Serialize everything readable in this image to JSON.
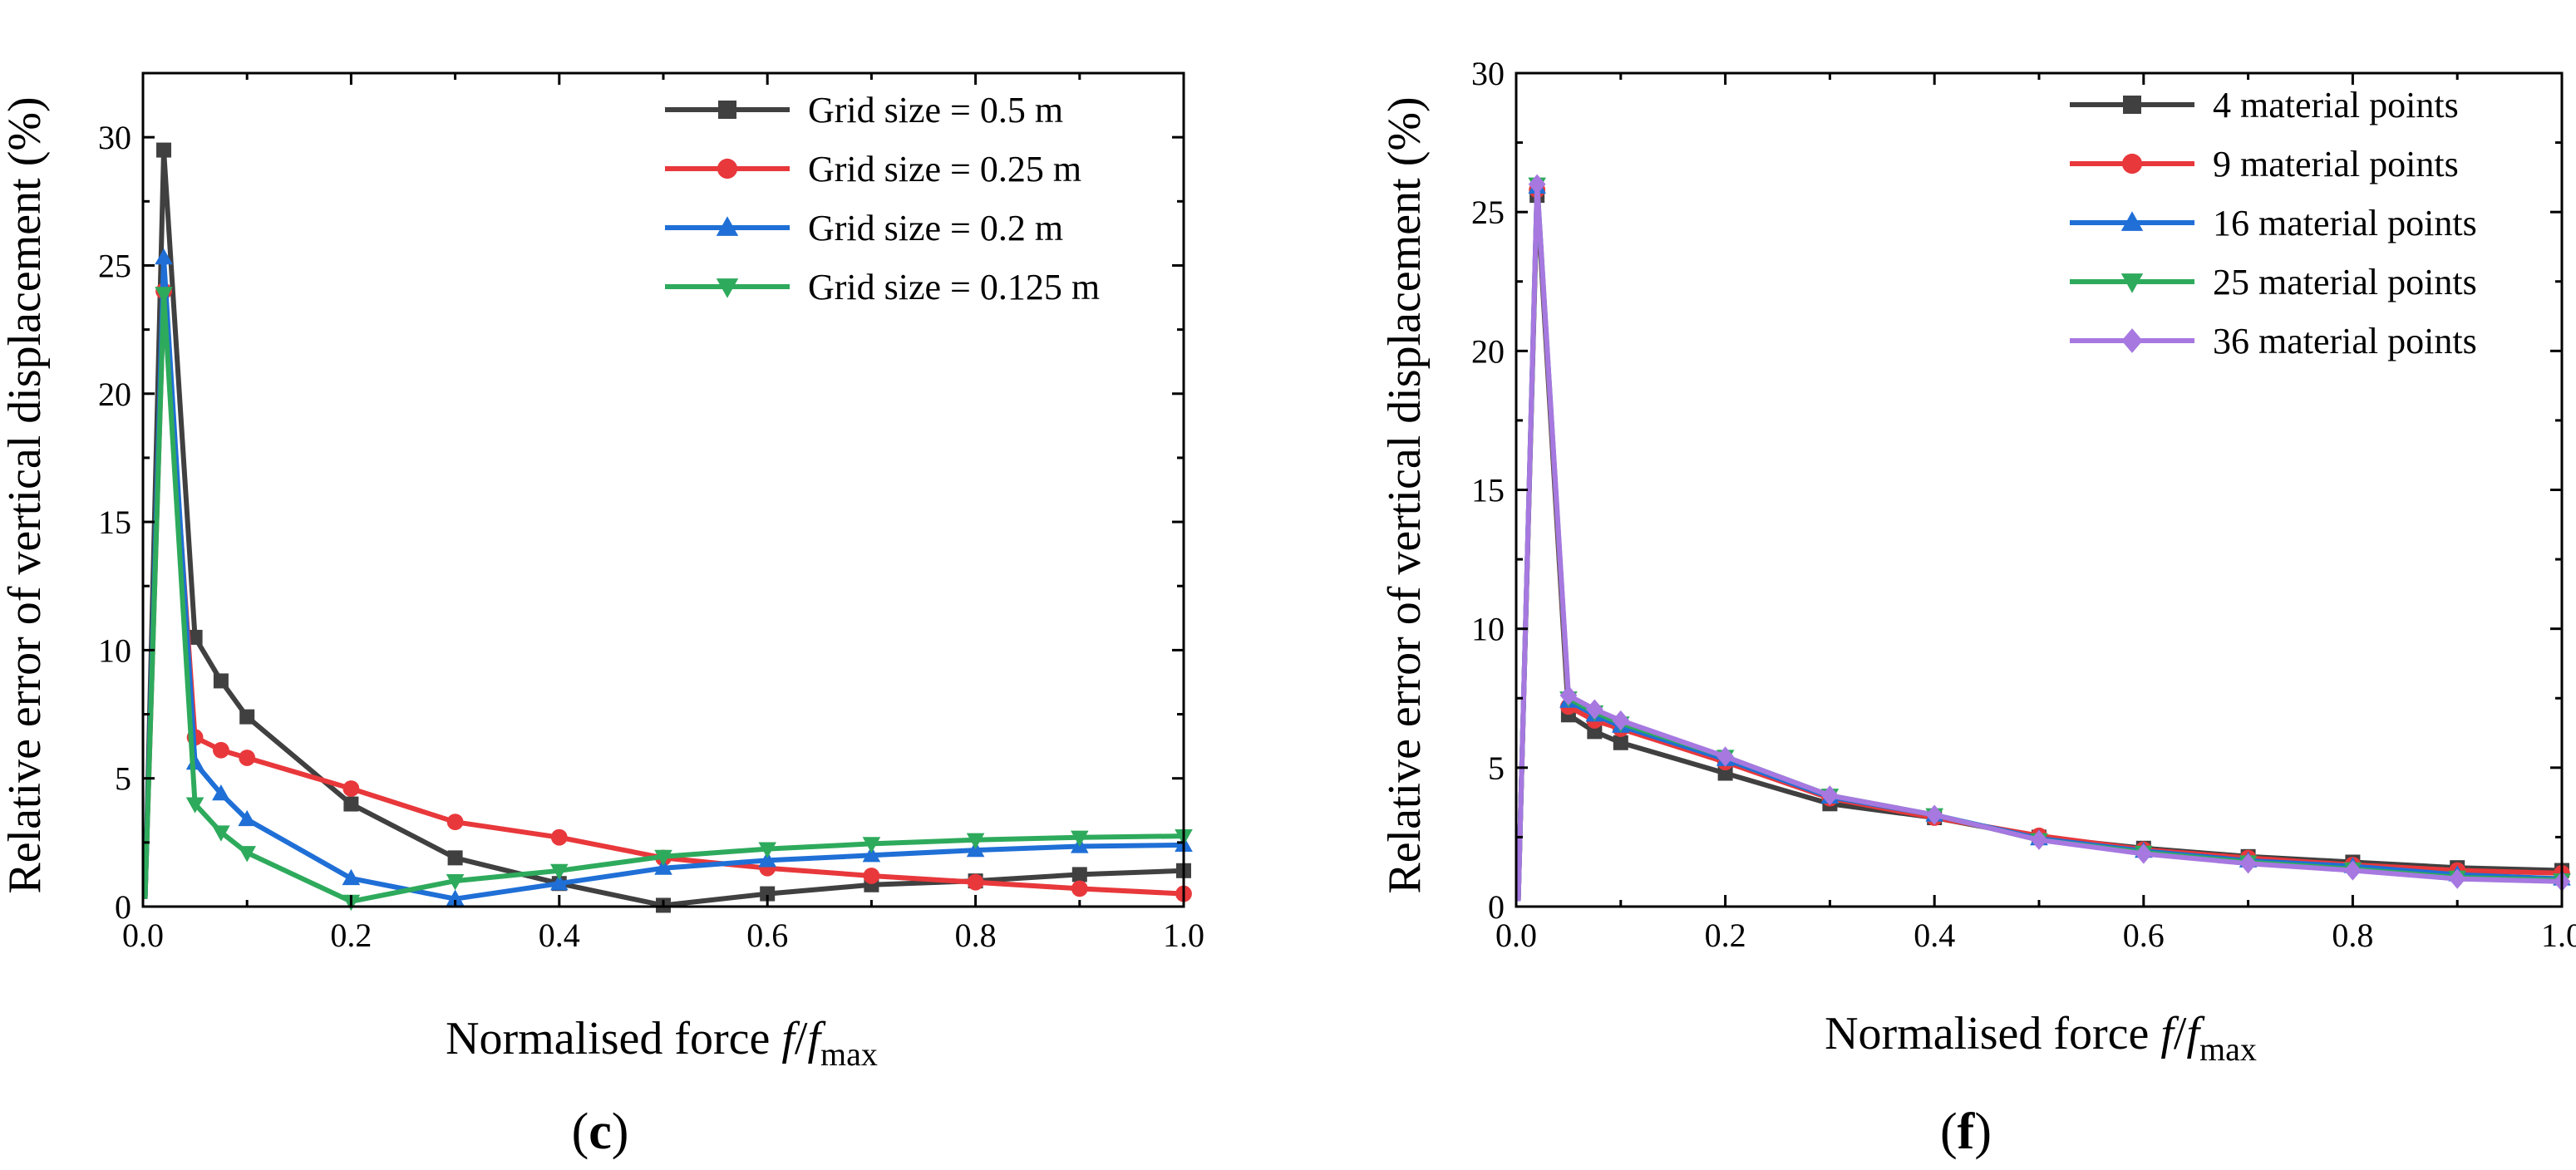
{
  "chart_data": [
    {
      "type": "line",
      "panel_label": {
        "open": "(",
        "letter": "c",
        "close": ")"
      },
      "xlabel": {
        "prefix": "Normalised force ",
        "f": "f",
        "slash": "/",
        "f2": "f",
        "sub": "max"
      },
      "ylabel": "Relative error of vertical displacement (%)",
      "xlim": [
        0,
        1.0
      ],
      "ylim": [
        0,
        32.5
      ],
      "x_ticks": [
        "0.0",
        "0.2",
        "0.4",
        "0.6",
        "0.8",
        "1.0"
      ],
      "y_ticks": [
        "0",
        "5",
        "10",
        "15",
        "20",
        "25",
        "30"
      ],
      "legend_position": "top-right",
      "x": [
        0.002,
        0.02,
        0.05,
        0.075,
        0.1,
        0.2,
        0.3,
        0.4,
        0.5,
        0.6,
        0.7,
        0.8,
        0.9,
        1.0
      ],
      "series": [
        {
          "name": "Grid size = 0.5 m",
          "color": "#404040",
          "marker": "square",
          "values": [
            0.3,
            29.5,
            10.5,
            8.8,
            7.4,
            4.0,
            1.9,
            0.9,
            0.05,
            0.5,
            0.85,
            1.0,
            1.25,
            1.4
          ]
        },
        {
          "name": "Grid size = 0.25 m",
          "color": "#e8383b",
          "marker": "circle",
          "values": [
            0.3,
            24.0,
            6.6,
            6.1,
            5.8,
            4.6,
            3.3,
            2.7,
            1.9,
            1.5,
            1.2,
            0.95,
            0.7,
            0.5
          ]
        },
        {
          "name": "Grid size = 0.2 m",
          "color": "#1f6fd6",
          "marker": "triangle-up",
          "values": [
            0.3,
            25.3,
            5.6,
            4.4,
            3.4,
            1.1,
            0.3,
            0.9,
            1.5,
            1.8,
            2.0,
            2.2,
            2.35,
            2.4
          ]
        },
        {
          "name": "Grid size = 0.125 m",
          "color": "#2eaa5c",
          "marker": "triangle-down",
          "values": [
            0.3,
            23.9,
            4.0,
            2.9,
            2.1,
            0.2,
            1.0,
            1.4,
            1.95,
            2.25,
            2.45,
            2.6,
            2.7,
            2.75
          ]
        }
      ]
    },
    {
      "type": "line",
      "panel_label": {
        "open": "(",
        "letter": "f",
        "close": ")"
      },
      "xlabel": {
        "prefix": "Normalised force ",
        "f": "f",
        "slash": "/",
        "f2": "f",
        "sub": "max"
      },
      "ylabel": "Relative error of vertical displacement (%)",
      "xlim": [
        0,
        1.0
      ],
      "ylim": [
        0,
        30
      ],
      "x_ticks": [
        "0.0",
        "0.2",
        "0.4",
        "0.6",
        "0.8",
        "1.0"
      ],
      "y_ticks": [
        "0",
        "5",
        "10",
        "15",
        "20",
        "25",
        "30"
      ],
      "legend_position": "top-right",
      "x": [
        0.002,
        0.02,
        0.05,
        0.075,
        0.1,
        0.2,
        0.3,
        0.4,
        0.5,
        0.6,
        0.7,
        0.8,
        0.9,
        1.0
      ],
      "series": [
        {
          "name": "4 material points",
          "color": "#404040",
          "marker": "square",
          "values": [
            0.2,
            25.6,
            6.9,
            6.3,
            5.9,
            4.8,
            3.7,
            3.2,
            2.5,
            2.1,
            1.8,
            1.6,
            1.4,
            1.3
          ]
        },
        {
          "name": "9 material points",
          "color": "#e8383b",
          "marker": "circle",
          "values": [
            0.2,
            25.8,
            7.2,
            6.7,
            6.4,
            5.2,
            3.9,
            3.2,
            2.55,
            2.05,
            1.75,
            1.5,
            1.3,
            1.2
          ]
        },
        {
          "name": "16 material points",
          "color": "#1f6fd6",
          "marker": "triangle-up",
          "values": [
            0.2,
            25.9,
            7.4,
            6.9,
            6.5,
            5.3,
            3.95,
            3.3,
            2.45,
            2.0,
            1.65,
            1.45,
            1.15,
            1.0
          ]
        },
        {
          "name": "25 material points",
          "color": "#2eaa5c",
          "marker": "triangle-down",
          "values": [
            0.2,
            26.0,
            7.5,
            7.0,
            6.6,
            5.4,
            4.0,
            3.3,
            2.4,
            1.95,
            1.6,
            1.35,
            1.05,
            0.95
          ]
        },
        {
          "name": "36 material points",
          "color": "#a678e0",
          "marker": "diamond",
          "values": [
            0.2,
            26.0,
            7.6,
            7.1,
            6.7,
            5.4,
            4.0,
            3.3,
            2.4,
            1.9,
            1.55,
            1.3,
            1.0,
            0.9
          ]
        }
      ]
    }
  ]
}
